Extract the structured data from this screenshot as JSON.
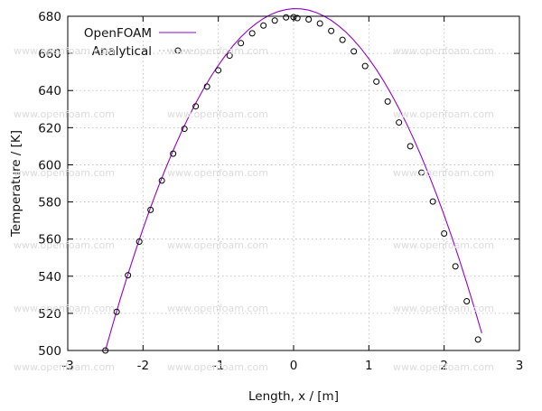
{
  "watermark_text": "www.openfoam.com",
  "chart_data": {
    "type": "line",
    "title": "",
    "xlabel": "Length, x / [m]",
    "ylabel": "Temperature / [K]",
    "xlim": [
      -3,
      3
    ],
    "ylim": [
      500,
      680
    ],
    "xticks": [
      -3,
      -2,
      -1,
      0,
      1,
      2,
      3
    ],
    "yticks": [
      500,
      520,
      540,
      560,
      580,
      600,
      620,
      640,
      660,
      680
    ],
    "grid": true,
    "legend_position": "top-left",
    "series": [
      {
        "name": "OpenFOAM",
        "style": "line",
        "color": "#9400d3",
        "x": [
          -2.5,
          -2.4,
          -2.3,
          -2.2,
          -2.1,
          -2.0,
          -1.9,
          -1.8,
          -1.7,
          -1.6,
          -1.5,
          -1.4,
          -1.3,
          -1.2,
          -1.1,
          -1.0,
          -0.9,
          -0.8,
          -0.7,
          -0.6,
          -0.5,
          -0.4,
          -0.3,
          -0.2,
          -0.1,
          0.0,
          0.1,
          0.2,
          0.3,
          0.4,
          0.5,
          0.6,
          0.7,
          0.8,
          0.9,
          1.0,
          1.1,
          1.2,
          1.3,
          1.4,
          1.5,
          1.6,
          1.7,
          1.8,
          1.9,
          2.0,
          2.1,
          2.2,
          2.3,
          2.4,
          2.5
        ],
        "y": [
          500.0,
          514.3,
          528.0,
          541.1,
          553.6,
          565.6,
          577.0,
          587.8,
          598.0,
          607.7,
          616.8,
          625.3,
          633.2,
          640.6,
          647.4,
          653.6,
          659.2,
          664.3,
          668.8,
          672.7,
          676.0,
          678.8,
          681.0,
          682.6,
          683.6,
          684.1,
          684.0,
          683.3,
          682.0,
          680.2,
          677.8,
          674.8,
          671.3,
          667.1,
          662.4,
          657.1,
          651.3,
          644.9,
          637.9,
          630.3,
          622.2,
          613.5,
          604.2,
          594.3,
          583.9,
          572.9,
          561.3,
          549.2,
          536.4,
          523.1,
          509.3
        ]
      },
      {
        "name": "Analytical",
        "style": "markers",
        "marker": "open-circle",
        "color": "#000000",
        "x": [
          -2.5,
          -2.35,
          -2.2,
          -2.05,
          -1.9,
          -1.75,
          -1.6,
          -1.45,
          -1.3,
          -1.15,
          -1.0,
          -0.85,
          -0.7,
          -0.55,
          -0.4,
          -0.25,
          -0.1,
          0.0,
          0.05,
          0.2,
          0.35,
          0.5,
          0.65,
          0.8,
          0.95,
          1.1,
          1.25,
          1.4,
          1.55,
          1.7,
          1.85,
          2.0,
          2.15,
          2.3,
          2.45
        ],
        "y": [
          500.0,
          520.8,
          540.5,
          558.6,
          575.7,
          591.5,
          606.0,
          619.4,
          631.5,
          642.1,
          650.9,
          658.8,
          665.5,
          670.8,
          675.0,
          677.7,
          679.4,
          679.5,
          679.0,
          678.3,
          676.1,
          672.1,
          667.3,
          661.1,
          653.2,
          644.8,
          634.1,
          622.8,
          610.0,
          595.8,
          580.2,
          563.0,
          545.3,
          526.5,
          505.9
        ]
      }
    ]
  }
}
